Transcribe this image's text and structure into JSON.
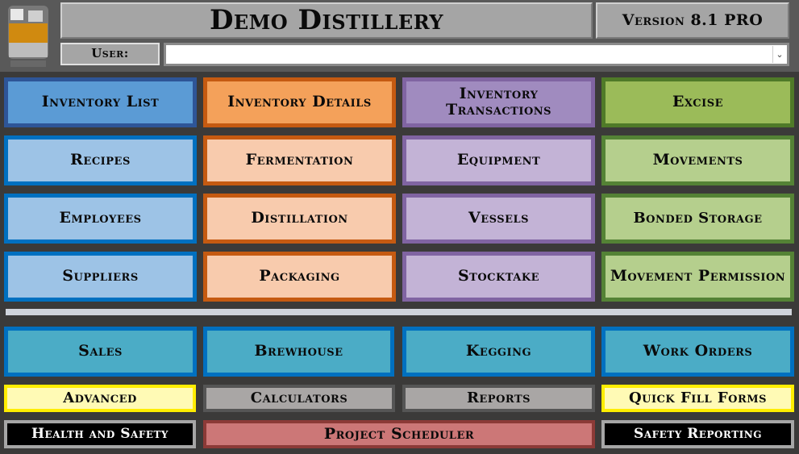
{
  "header": {
    "title": "Demo Distillery",
    "version": "Version 8.1 PRO",
    "user_label": "User:",
    "user_value": ""
  },
  "buttons": {
    "inventory_list": "Inventory List",
    "inventory_details": "Inventory Details",
    "inventory_transactions": "Inventory Transactions",
    "excise": "Excise",
    "recipes": "Recipes",
    "fermentation": "Fermentation",
    "equipment": "Equipment",
    "movements": "Movements",
    "employees": "Employees",
    "distillation": "Distillation",
    "vessels": "Vessels",
    "bonded_storage": "Bonded Storage",
    "suppliers": "Suppliers",
    "packaging": "Packaging",
    "stocktake": "Stocktake",
    "movement_permission": "Movement Permission",
    "sales": "Sales",
    "brewhouse": "Brewhouse",
    "kegging": "Kegging",
    "work_orders": "Work Orders",
    "advanced": "Advanced",
    "calculators": "Calculators",
    "reports": "Reports",
    "quick_fill_forms": "Quick Fill Forms",
    "health_and_safety": "Health and Safety",
    "project_scheduler": "Project Scheduler",
    "safety_reporting": "Safety Reporting"
  },
  "colors": {
    "blue_dark": "#5b9bd5",
    "blue_light": "#9dc3e6",
    "orange_dark": "#f4a15a",
    "orange_light": "#f8cbad",
    "purple_dark": "#a08bbf",
    "purple_light": "#c3b3d6",
    "green_dark": "#9bbb59",
    "green_light": "#b5cf8d",
    "teal": "#4bacc6",
    "yellow": "#fffab5",
    "gray": "#a6a6a6",
    "red": "#cc7777"
  }
}
